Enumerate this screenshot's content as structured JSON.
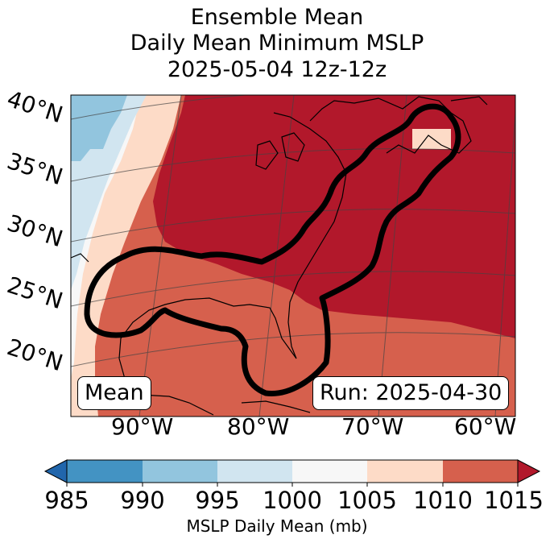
{
  "title": {
    "line1": "Ensemble Mean",
    "line2": "Daily Mean Minimum MSLP",
    "line3": "2025-05-04 12z-12z"
  },
  "map": {
    "lat_labels": [
      "40°N",
      "35°N",
      "30°N",
      "25°N",
      "20°N"
    ],
    "lon_labels": [
      "90°W",
      "80°W",
      "70°W",
      "60°W"
    ],
    "mean_label": "Mean",
    "run_label": "Run: 2025-04-30",
    "contour_color": "#000000"
  },
  "colorbar": {
    "ticks": [
      "985",
      "990",
      "995",
      "1000",
      "1005",
      "1010",
      "1015"
    ],
    "label": "MSLP Daily Mean (mb)",
    "colors": [
      "#2166ac",
      "#4393c3",
      "#92c5de",
      "#d1e5f0",
      "#f7f7f7",
      "#fddbc7",
      "#d6604d",
      "#b2182b"
    ]
  }
}
